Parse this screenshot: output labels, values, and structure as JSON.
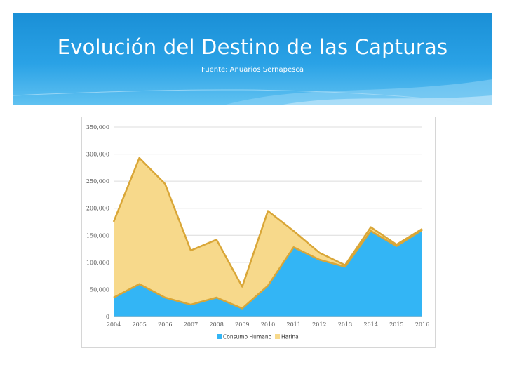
{
  "slide": {
    "title": "Evolución del Destino de las Capturas",
    "subtitle": "Fuente: Anuarios Sernapesca"
  },
  "colors": {
    "banner_top": "#1a8fd6",
    "banner_bottom": "#61c2f1",
    "consumo_fill": "#33b5f5",
    "harina_fill": "#f7d98b",
    "series_line": "#d9a637"
  },
  "chart_data": {
    "type": "area",
    "stacked": true,
    "title": "",
    "xlabel": "",
    "ylabel": "",
    "ylim": [
      0,
      350000
    ],
    "yticks": [
      0,
      50000,
      100000,
      150000,
      200000,
      250000,
      300000,
      350000
    ],
    "ytick_labels": [
      "0",
      "50,000",
      "100,000",
      "150,000",
      "200,000",
      "250,000",
      "300,000",
      "350,000"
    ],
    "grid": true,
    "legend_position": "bottom",
    "categories": [
      "2004",
      "2005",
      "2006",
      "2007",
      "2008",
      "2009",
      "2010",
      "2011",
      "2012",
      "2013",
      "2014",
      "2015",
      "2016"
    ],
    "series": [
      {
        "name": "Consumo Humano",
        "color": "#33b5f5",
        "values": [
          35000,
          60000,
          35000,
          22000,
          35000,
          15000,
          57000,
          128000,
          105000,
          92000,
          158000,
          130000,
          160000
        ]
      },
      {
        "name": "Harina",
        "color": "#f7d98b",
        "values": [
          140000,
          233000,
          210000,
          100000,
          107000,
          40000,
          138000,
          30000,
          13000,
          3000,
          7000,
          3000,
          2000
        ]
      }
    ]
  }
}
